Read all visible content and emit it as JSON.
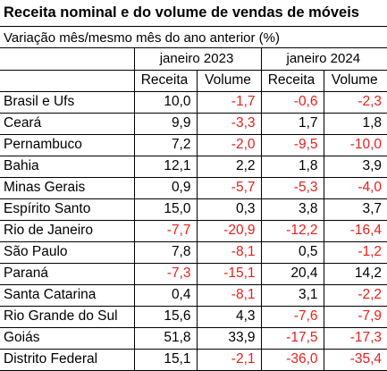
{
  "title": "Receita nominal e do volume de vendas de móveis",
  "subtitle": "Variação mês/mesmo mês do ano anterior (%)",
  "groups": [
    "janeiro 2023",
    "janeiro 2024"
  ],
  "columns": [
    "Receita",
    "Volume",
    "Receita",
    "Volume"
  ],
  "colors": {
    "negative": "#e8201d",
    "positive": "#000000"
  },
  "rows": [
    {
      "name": "Brasil e Ufs",
      "values": [
        "10,0",
        "-1,7",
        "-0,6",
        "-2,3"
      ]
    },
    {
      "name": "Ceará",
      "values": [
        "9,9",
        "-3,3",
        "1,7",
        "1,8"
      ]
    },
    {
      "name": "Pernambuco",
      "values": [
        "7,2",
        "-2,0",
        "-9,5",
        "-10,0"
      ]
    },
    {
      "name": "Bahia",
      "values": [
        "12,1",
        "2,2",
        "1,8",
        "3,9"
      ]
    },
    {
      "name": "Minas Gerais",
      "values": [
        "0,9",
        "-5,7",
        "-5,3",
        "-4,0"
      ]
    },
    {
      "name": "Espírito Santo",
      "values": [
        "15,0",
        "0,3",
        "3,8",
        "3,7"
      ]
    },
    {
      "name": "Rio de Janeiro",
      "values": [
        "-7,7",
        "-20,9",
        "-12,2",
        "-16,4"
      ]
    },
    {
      "name": "São Paulo",
      "values": [
        "7,8",
        "-8,1",
        "0,5",
        "-1,2"
      ]
    },
    {
      "name": "Paraná",
      "values": [
        "-7,3",
        "-15,1",
        "20,4",
        "14,2"
      ]
    },
    {
      "name": "Santa Catarina",
      "values": [
        "0,4",
        "-8,1",
        "3,1",
        "-2,2"
      ]
    },
    {
      "name": "Rio Grande do Sul",
      "values": [
        "15,6",
        "4,3",
        "-7,6",
        "-7,9"
      ]
    },
    {
      "name": "Goiás",
      "values": [
        "51,8",
        "33,9",
        "-17,5",
        "-17,3"
      ]
    },
    {
      "name": "Distrito Federal",
      "values": [
        "15,1",
        "-2,1",
        "-36,0",
        "-35,4"
      ]
    }
  ]
}
